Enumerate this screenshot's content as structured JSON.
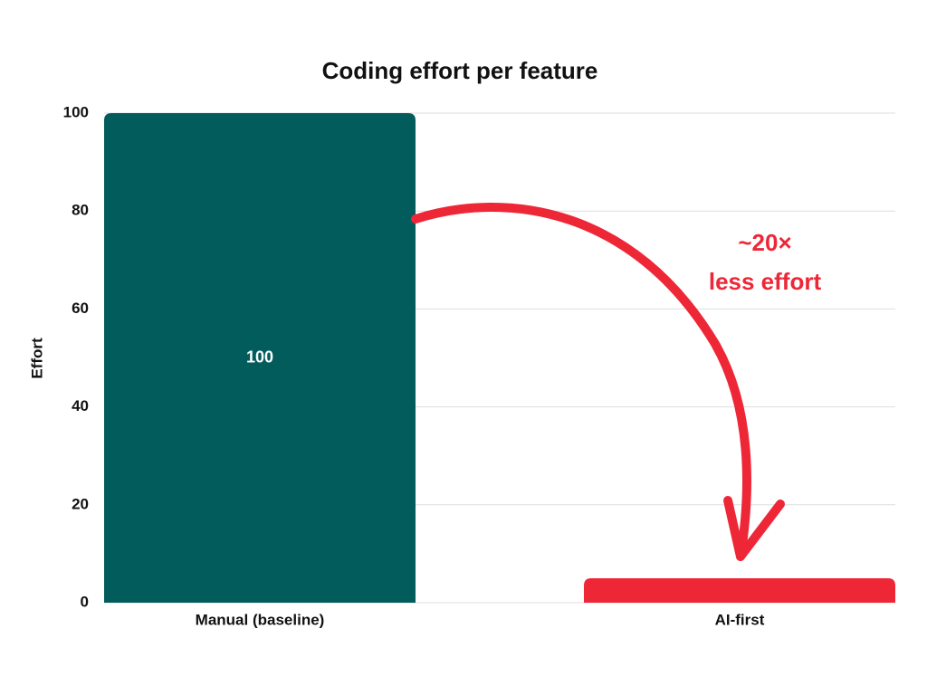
{
  "chart_data": {
    "type": "bar",
    "title": "Coding effort per feature",
    "y_label": "Effort",
    "categories": [
      "Manual (baseline)",
      "AI-first"
    ],
    "values": [
      100,
      5
    ],
    "value_labels": [
      "100",
      null
    ],
    "colors": [
      "#025c5c",
      "#ee2737"
    ],
    "ylim": [
      0,
      100
    ],
    "yticks": [
      0,
      20,
      40,
      60,
      80,
      100
    ],
    "grid": true,
    "annotation": {
      "lines": [
        "~20×",
        "less effort"
      ],
      "color": "#ee2737"
    }
  }
}
